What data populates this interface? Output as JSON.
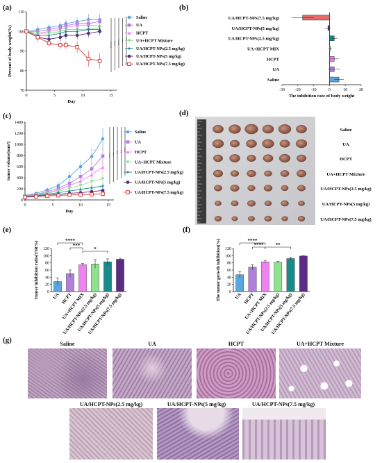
{
  "panel_labels": {
    "a": "(a)",
    "b": "(b)",
    "c": "(c)",
    "d": "(d)",
    "e": "(e)",
    "f": "(f)",
    "g": "(g)"
  },
  "colors": {
    "Saline": "#5aa7e0",
    "UA": "#b07fdc",
    "HCPT": "#ee82ee",
    "UA+HCPT Mixture": "#8fe08f",
    "UA/HCPT-NPs(2.5 mg/kg)": "#1a8a8a",
    "UA/HCPT-NPs(5 mg/kg)": "#5b2c83",
    "UA/HCPT-NPs(7.5 mg/kg)": "#d93b3b"
  },
  "chart_data": [
    {
      "panel": "a",
      "type": "line",
      "xlabel": "Day",
      "ylabel": "Percent of body weight(%)",
      "xlim": [
        0,
        16
      ],
      "ylim": [
        70,
        110
      ],
      "xticks": [
        0,
        5,
        10,
        15
      ],
      "yticks": [
        70,
        80,
        90,
        100,
        110
      ],
      "x": [
        0,
        2,
        4,
        6,
        7,
        9,
        11,
        13
      ],
      "series": [
        {
          "name": "Saline",
          "marker": "circle",
          "values": [
            100,
            101,
            102,
            103,
            104,
            105,
            106,
            106
          ],
          "err": [
            1,
            2,
            2,
            2,
            2,
            2,
            3,
            3
          ]
        },
        {
          "name": "UA",
          "marker": "square",
          "values": [
            100,
            100,
            101,
            102,
            103,
            104,
            104,
            105
          ],
          "err": [
            1,
            2,
            2,
            2,
            3,
            2,
            3,
            3
          ]
        },
        {
          "name": "HCPT",
          "marker": "triangle",
          "values": [
            100,
            99,
            100,
            101,
            102,
            103,
            103,
            103
          ],
          "err": [
            1,
            2,
            2,
            2,
            2,
            3,
            3,
            3
          ]
        },
        {
          "name": "UA+HCPT Mixture",
          "marker": "down",
          "values": [
            100,
            99,
            99,
            100,
            101,
            101,
            101,
            102
          ],
          "err": [
            1,
            2,
            2,
            2,
            2,
            2,
            2,
            2
          ]
        },
        {
          "name": "UA/HCPT-NPs(2.5 mg/kg)",
          "marker": "star",
          "values": [
            100,
            98,
            98,
            99,
            100,
            100,
            101,
            101
          ],
          "err": [
            1,
            2,
            2,
            2,
            2,
            2,
            2,
            2
          ]
        },
        {
          "name": "UA/HCPT-NPs(5 mg/kg)",
          "marker": "hexagon",
          "values": [
            100,
            97,
            96,
            97,
            98,
            98,
            99,
            100
          ],
          "err": [
            1,
            2,
            2,
            2,
            2,
            2,
            2,
            2
          ]
        },
        {
          "name": "UA/HCPT-NPs(7.5 mg/kg)",
          "marker": "opensquare",
          "values": [
            100,
            97,
            94,
            93,
            93,
            92,
            86,
            85
          ],
          "err": [
            1,
            2,
            2,
            2,
            2,
            3,
            4,
            4
          ]
        }
      ],
      "significance": [
        "****",
        "****",
        "****",
        "**",
        "**"
      ]
    },
    {
      "panel": "b",
      "type": "bar",
      "orientation": "horizontal",
      "xlabel": "The inhibition rate of body weight",
      "xlim": [
        -30,
        20
      ],
      "xticks": [
        -30,
        -20,
        -10,
        0,
        10,
        20
      ],
      "categories": [
        "UA/HCPT-NPs(7.5 mg/kg)",
        "UA/HCPT-NPs(5 mg/kg)",
        "UA/HCPT-NPs(2.5 mg/kg)",
        "UA+HCPT MIX",
        "HCPT",
        "UA",
        "Saline"
      ],
      "values": [
        -17,
        -1,
        3,
        0.5,
        3,
        3,
        6
      ],
      "err": [
        7,
        2,
        2,
        1,
        3,
        4,
        3
      ],
      "bar_colors": [
        "#e86a6a",
        "#5b2c83",
        "#1a8a8a",
        "#8fe08f",
        "#ee82ee",
        "#b07fdc",
        "#5aa7e0"
      ]
    },
    {
      "panel": "c",
      "type": "line",
      "xlabel": "Day",
      "ylabel": "tumor volume(mm³)",
      "xlim": [
        0,
        16
      ],
      "ylim": [
        0,
        1400
      ],
      "xticks": [
        0,
        5,
        10,
        15
      ],
      "yticks": [
        0,
        200,
        400,
        600,
        800,
        1000,
        1200,
        1400
      ],
      "x": [
        0,
        2,
        4,
        6,
        8,
        10,
        12,
        14
      ],
      "series": [
        {
          "name": "Saline",
          "marker": "circle",
          "values": [
            80,
            120,
            180,
            260,
            420,
            600,
            780,
            1100
          ],
          "err": [
            20,
            30,
            40,
            60,
            80,
            100,
            150,
            200
          ]
        },
        {
          "name": "UA",
          "marker": "square",
          "values": [
            75,
            100,
            150,
            210,
            300,
            420,
            560,
            790
          ],
          "err": [
            20,
            30,
            40,
            50,
            70,
            90,
            120,
            150
          ]
        },
        {
          "name": "HCPT",
          "marker": "triangle",
          "values": [
            70,
            95,
            130,
            180,
            260,
            340,
            450,
            590
          ],
          "err": [
            20,
            30,
            40,
            50,
            60,
            80,
            100,
            120
          ]
        },
        {
          "name": "UA+HCPT Mixture",
          "marker": "down",
          "values": [
            65,
            90,
            120,
            160,
            210,
            260,
            330,
            380
          ],
          "err": [
            20,
            30,
            40,
            40,
            50,
            60,
            70,
            80
          ]
        },
        {
          "name": "UA/HCPT-NPs(2.5 mg/kg)",
          "marker": "star",
          "values": [
            60,
            80,
            100,
            130,
            160,
            190,
            220,
            250
          ],
          "err": [
            15,
            20,
            30,
            30,
            40,
            40,
            50,
            50
          ]
        },
        {
          "name": "UA/HCPT-NPs(5 mg/kg)",
          "marker": "hexagon",
          "values": [
            55,
            70,
            85,
            100,
            120,
            130,
            150,
            170
          ],
          "err": [
            15,
            20,
            20,
            25,
            30,
            30,
            35,
            40
          ]
        },
        {
          "name": "UA/HCPT-NPs(7.5 mg/kg)",
          "marker": "opensquare",
          "values": [
            50,
            60,
            70,
            80,
            90,
            95,
            100,
            110
          ],
          "err": [
            10,
            15,
            20,
            20,
            20,
            25,
            25,
            30
          ]
        }
      ],
      "legend_labels": [
        "Saline",
        "UA",
        "HCPT",
        "UA+HCPT Mixture",
        "UA/HCPT-NPs(2.5 mg/kg)",
        "UA/HCPT-NPs(5 mg/kg)",
        "UA/HCPT-NPs(7.5 mg/kg)"
      ],
      "significance": [
        "***",
        "**",
        "**",
        "**",
        "***"
      ]
    },
    {
      "panel": "e",
      "type": "bar",
      "ylabel": "Tumor inhibition ratio(TIR%)",
      "ylim": [
        0,
        120
      ],
      "yticks": [
        0,
        20,
        40,
        60,
        80,
        100,
        120
      ],
      "categories": [
        "UA",
        "HCPT",
        "UA+HCPT MIX",
        "UA/HCPT-NPs(2.5 mg/kg)",
        "UA/HCPT-NPs(5 mg/kg)",
        "UA/HCPT-NPs(7.5 mg/kg)"
      ],
      "values": [
        28,
        50,
        75,
        77,
        83,
        90
      ],
      "err": [
        10,
        10,
        3,
        12,
        8,
        3
      ],
      "bar_colors": [
        "#5aa7e0",
        "#b07fdc",
        "#ee82ee",
        "#8fe08f",
        "#1a8a8a",
        "#5b2c83"
      ],
      "significance": [
        {
          "from": 0,
          "to": 2,
          "label": "****"
        },
        {
          "from": 2,
          "to": 4,
          "label": "*"
        },
        {
          "from": 1,
          "to": 2,
          "label": "***"
        }
      ]
    },
    {
      "panel": "f",
      "type": "bar",
      "ylabel": "The tumor growth inhibition(%)",
      "ylim": [
        0,
        120
      ],
      "yticks": [
        0,
        20,
        40,
        60,
        80,
        100,
        120
      ],
      "categories": [
        "UA",
        "HCPT",
        "UA+HCPT MIX",
        "UA/HCPT-NPs(2.5 mg/kg)",
        "UA/HCPT-NPs(5 mg/kg)",
        "UA/HCPT-NPs(7.5 mg/kg)"
      ],
      "values": [
        47,
        68,
        83,
        82,
        92,
        99
      ],
      "err": [
        9,
        7,
        4,
        2,
        3,
        1
      ],
      "bar_colors": [
        "#5aa7e0",
        "#b07fdc",
        "#ee82ee",
        "#8fe08f",
        "#1a8a8a",
        "#5b2c83"
      ],
      "significance": [
        {
          "from": 0,
          "to": 2,
          "label": "****"
        },
        {
          "from": 2,
          "to": 4,
          "label": "**"
        },
        {
          "from": 1,
          "to": 2,
          "label": "****"
        }
      ]
    }
  ],
  "photo_d": {
    "rows": [
      "Saline",
      "UA",
      "HCPT",
      "UA+HCPT Mixture",
      "UA/HCPT-NPs(2.5 mg/kg)",
      "UA/HCPT-NPs(5 mg/kg)",
      "UA/HCPT-NPs(7.5 mg/kg)"
    ]
  },
  "histology_g": {
    "labels": [
      "Saline",
      "UA",
      "HCPT",
      "UA+HCPT Mixture",
      "UA/HCPT-NPs(2.5 mg/kg)",
      "UA/HCPT-NPs(5 mg/kg)",
      "UA/HCPT-NPs(7.5 mg/kg)"
    ]
  }
}
